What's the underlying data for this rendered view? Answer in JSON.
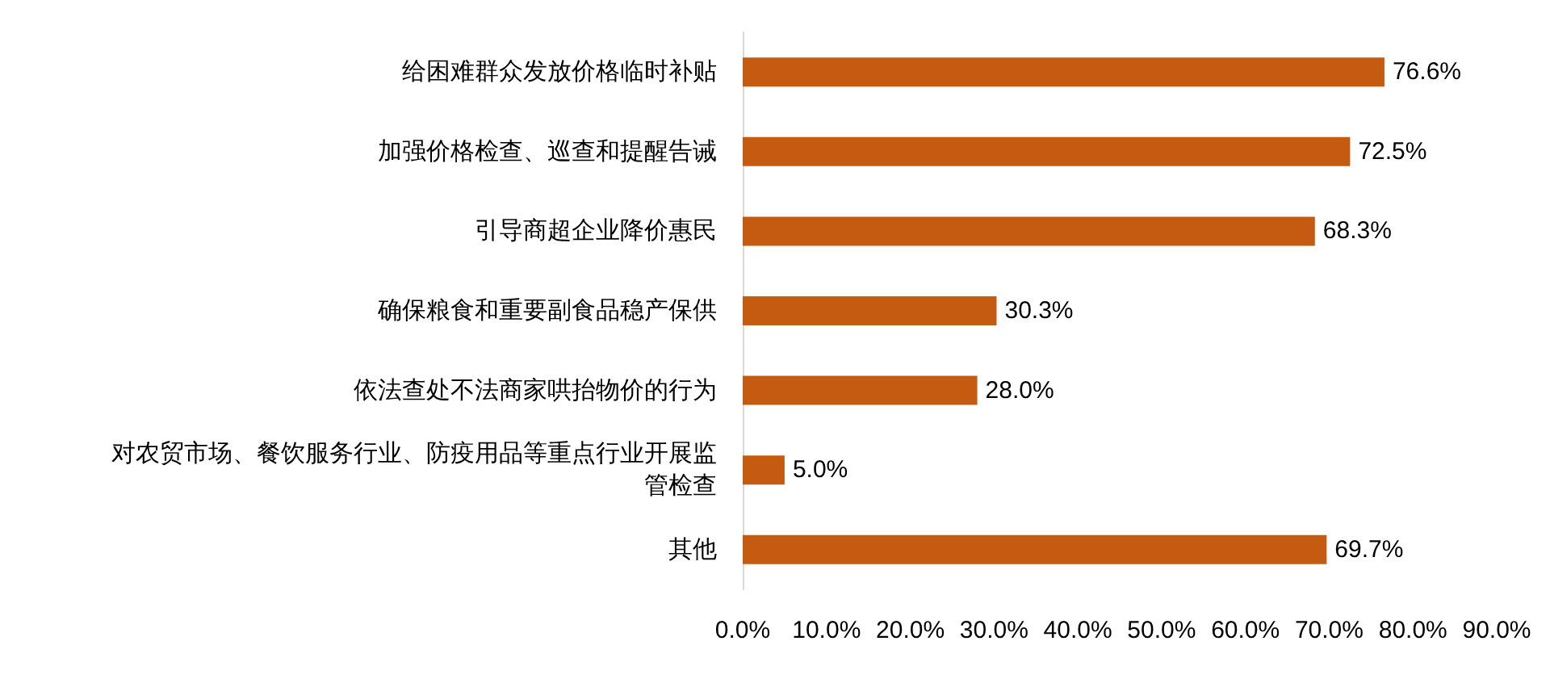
{
  "chart_data": {
    "type": "bar",
    "orientation": "horizontal",
    "categories": [
      "给困难群众发放价格临时补贴",
      "加强价格检查、巡查和提醒告诫",
      "引导商超企业降价惠民",
      "确保粮食和重要副食品稳产保供",
      "依法查处不法商家哄抬物价的行为",
      "对农贸市场、餐饮服务行业、防疫用品等重点行业开展监管检查",
      "其他"
    ],
    "values": [
      76.6,
      72.5,
      68.3,
      30.3,
      28.0,
      5.0,
      69.7
    ],
    "value_labels": [
      "76.6%",
      "72.5%",
      "68.3%",
      "30.3%",
      "28.0%",
      "5.0%",
      "69.7%"
    ],
    "color": "#c55a11",
    "xlim": [
      0,
      90
    ],
    "xticks": [
      {
        "value": 0,
        "label": "0.0%"
      },
      {
        "value": 10,
        "label": "10.0%"
      },
      {
        "value": 20,
        "label": "20.0%"
      },
      {
        "value": 30,
        "label": "30.0%"
      },
      {
        "value": 40,
        "label": "40.0%"
      },
      {
        "value": 50,
        "label": "50.0%"
      },
      {
        "value": 60,
        "label": "60.0%"
      },
      {
        "value": 70,
        "label": "70.0%"
      },
      {
        "value": 80,
        "label": "80.0%"
      },
      {
        "value": 90,
        "label": "90.0%"
      }
    ],
    "grid": false
  }
}
